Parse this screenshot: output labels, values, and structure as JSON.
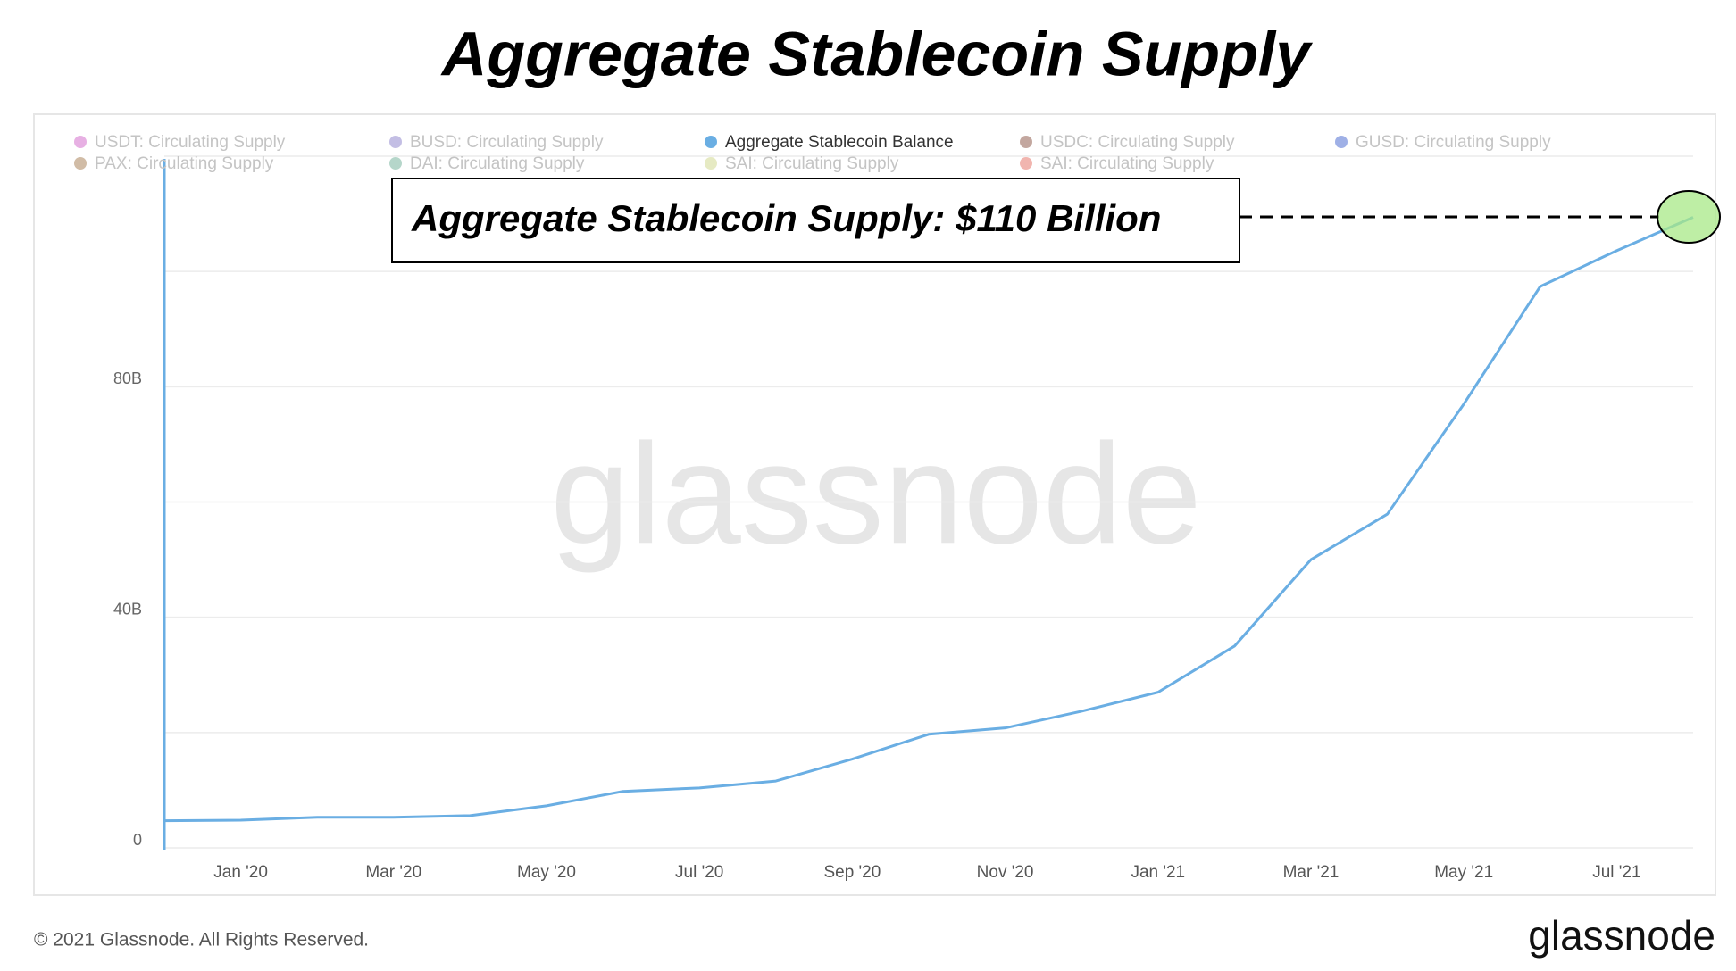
{
  "chart_data": {
    "type": "line",
    "title": "Aggregate Stablecoin Supply",
    "annotation": "Aggregate Stablecoin Supply: $110 Billion",
    "watermark": "glassnode",
    "footer": "© 2021 Glassnode. All Rights Reserved.",
    "logo": "glassnode",
    "x": [
      "2019-12",
      "2020-01",
      "2020-02",
      "2020-03",
      "2020-04",
      "2020-05",
      "2020-06",
      "2020-07",
      "2020-08",
      "2020-09",
      "2020-10",
      "2020-11",
      "2020-12",
      "2021-01",
      "2021-02",
      "2021-03",
      "2021-04",
      "2021-05",
      "2021-06",
      "2021-07",
      "2021-08"
    ],
    "series": [
      {
        "name": "USDT: Circulating Supply",
        "color": "#c94fc2",
        "hidden": true
      },
      {
        "name": "BUSD: Circulating Supply",
        "color": "#7b6fc4",
        "hidden": true
      },
      {
        "name": "Aggregate Stablecoin Balance",
        "color": "#6aaee3",
        "values": [
          4.7,
          4.8,
          5.3,
          5.3,
          5.6,
          7.3,
          9.8,
          10.4,
          11.6,
          15.4,
          19.7,
          20.8,
          23.7,
          27,
          35,
          50,
          57.9,
          77,
          97.4,
          103.6,
          109.4
        ]
      },
      {
        "name": "USDC: Circulating Supply",
        "color": "#7a3b2a",
        "hidden": true
      },
      {
        "name": "GUSD: Circulating Supply",
        "color": "#2b50c8",
        "hidden": true
      },
      {
        "name": "PAX: Circulating Supply",
        "color": "#9a6a3a",
        "hidden": true
      },
      {
        "name": "DAI: Circulating Supply",
        "color": "#5aa38a",
        "hidden": true
      },
      {
        "name": "SAI: Circulating Supply",
        "color": "#c8d07a",
        "hidden": true
      },
      {
        "name": "SAI: Circulating Supply",
        "color": "#e05a4e",
        "hidden": true
      }
    ],
    "xlim": [
      "2019-12",
      "2021-08"
    ],
    "xticks": [
      {
        "value": "2020-01",
        "label": "Jan '20"
      },
      {
        "value": "2020-03",
        "label": "Mar '20"
      },
      {
        "value": "2020-05",
        "label": "May '20"
      },
      {
        "value": "2020-07",
        "label": "Jul '20"
      },
      {
        "value": "2020-09",
        "label": "Sep '20"
      },
      {
        "value": "2020-11",
        "label": "Nov '20"
      },
      {
        "value": "2021-01",
        "label": "Jan '21"
      },
      {
        "value": "2021-03",
        "label": "Mar '21"
      },
      {
        "value": "2021-05",
        "label": "May '21"
      },
      {
        "value": "2021-07",
        "label": "Jul '21"
      }
    ],
    "ylim": [
      0,
      120
    ],
    "yticks": [
      0,
      {
        "value": 40,
        "label": "40B"
      },
      {
        "value": 80,
        "label": "80B"
      }
    ],
    "ygrid": [
      0,
      20,
      40,
      60,
      80,
      100,
      120
    ],
    "grid": true
  }
}
